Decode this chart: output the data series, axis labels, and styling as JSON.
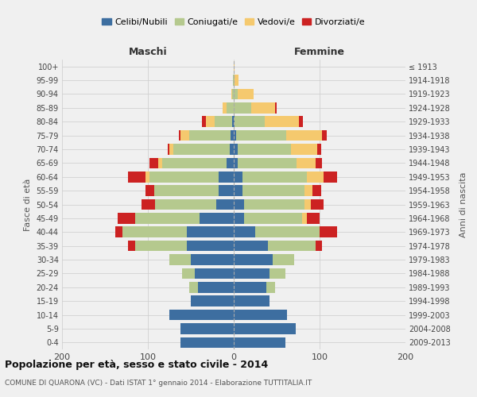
{
  "age_groups": [
    "0-4",
    "5-9",
    "10-14",
    "15-19",
    "20-24",
    "25-29",
    "30-34",
    "35-39",
    "40-44",
    "45-49",
    "50-54",
    "55-59",
    "60-64",
    "65-69",
    "70-74",
    "75-79",
    "80-84",
    "85-89",
    "90-94",
    "95-99",
    "100+"
  ],
  "birth_years": [
    "2009-2013",
    "2004-2008",
    "1999-2003",
    "1994-1998",
    "1989-1993",
    "1984-1988",
    "1979-1983",
    "1974-1978",
    "1969-1973",
    "1964-1968",
    "1959-1963",
    "1954-1958",
    "1949-1953",
    "1944-1948",
    "1939-1943",
    "1934-1938",
    "1929-1933",
    "1924-1928",
    "1919-1923",
    "1914-1918",
    "≤ 1913"
  ],
  "males": {
    "celibi": [
      62,
      62,
      75,
      50,
      42,
      45,
      50,
      55,
      55,
      40,
      20,
      18,
      18,
      8,
      5,
      4,
      2,
      0,
      0,
      0,
      0
    ],
    "coniugati": [
      0,
      0,
      0,
      0,
      10,
      15,
      25,
      60,
      75,
      75,
      72,
      75,
      80,
      75,
      65,
      48,
      20,
      8,
      2,
      1,
      0
    ],
    "vedovi": [
      0,
      0,
      0,
      0,
      0,
      0,
      0,
      0,
      0,
      0,
      0,
      0,
      5,
      5,
      5,
      10,
      10,
      5,
      1,
      0,
      0
    ],
    "divorziati": [
      0,
      0,
      0,
      0,
      0,
      0,
      0,
      8,
      8,
      20,
      15,
      10,
      20,
      10,
      2,
      2,
      5,
      0,
      0,
      0,
      0
    ]
  },
  "females": {
    "nubili": [
      60,
      72,
      62,
      42,
      38,
      42,
      45,
      40,
      25,
      12,
      12,
      10,
      10,
      5,
      5,
      3,
      1,
      0,
      0,
      0,
      0
    ],
    "coniugate": [
      0,
      0,
      0,
      0,
      10,
      18,
      25,
      55,
      75,
      68,
      70,
      72,
      75,
      68,
      62,
      58,
      35,
      20,
      5,
      1,
      0
    ],
    "vedove": [
      0,
      0,
      0,
      0,
      0,
      0,
      0,
      0,
      0,
      5,
      8,
      10,
      20,
      22,
      30,
      42,
      40,
      28,
      18,
      5,
      1
    ],
    "divorziate": [
      0,
      0,
      0,
      0,
      0,
      0,
      0,
      8,
      20,
      15,
      15,
      10,
      15,
      8,
      5,
      5,
      5,
      2,
      0,
      0,
      0
    ]
  },
  "colors": {
    "celibi_nubili": "#3d6ea0",
    "coniugati": "#b5c98e",
    "vedovi": "#f5c96e",
    "divorziati": "#cc2222"
  },
  "title": "Popolazione per età, sesso e stato civile - 2014",
  "subtitle": "COMUNE DI QUARONA (VC) - Dati ISTAT 1° gennaio 2014 - Elaborazione TUTTITALIA.IT",
  "xlabel_left": "Maschi",
  "xlabel_right": "Femmine",
  "ylabel_left": "Fasce di età",
  "ylabel_right": "Anni di nascita",
  "xlim": 200,
  "bg_color": "#f0f0f0",
  "legend_labels": [
    "Celibi/Nubili",
    "Coniugati/e",
    "Vedovi/e",
    "Divorziati/e"
  ]
}
